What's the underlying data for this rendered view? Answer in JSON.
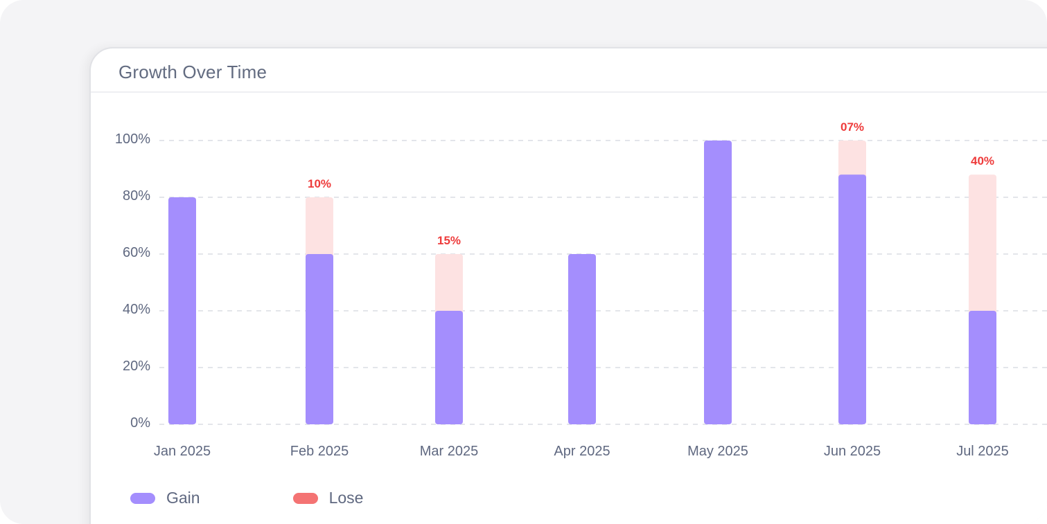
{
  "card": {
    "title": "Growth Over Time"
  },
  "colors": {
    "gain": "#a48efd",
    "lose_fill": "#fde2e2",
    "lose_swatch": "#f47373",
    "lose_text": "#ee3b3b",
    "axis_text": "#5f6880",
    "grid": "#e3e5ea"
  },
  "chart_data": {
    "type": "bar",
    "stacked": true,
    "title": "Growth Over Time",
    "categories": [
      "Jan 2025",
      "Feb 2025",
      "Mar 2025",
      "Apr 2025",
      "May 2025",
      "Jun 2025",
      "Jul 2025"
    ],
    "series": [
      {
        "name": "Gain",
        "values": [
          80,
          60,
          40,
          60,
          100,
          88,
          40
        ]
      },
      {
        "name": "Lose",
        "values": [
          0,
          20,
          20,
          0,
          0,
          12,
          48
        ]
      }
    ],
    "labels": [
      "",
      "10%",
      "15%",
      "",
      "",
      "07%",
      "40%"
    ],
    "yticks": [
      "0%",
      "20%",
      "40%",
      "60%",
      "80%",
      "100%"
    ],
    "ylim": [
      0,
      100
    ],
    "grid": true
  },
  "legend": [
    {
      "label": "Gain",
      "color": "#a48efd"
    },
    {
      "label": "Lose",
      "color": "#f47373"
    }
  ]
}
